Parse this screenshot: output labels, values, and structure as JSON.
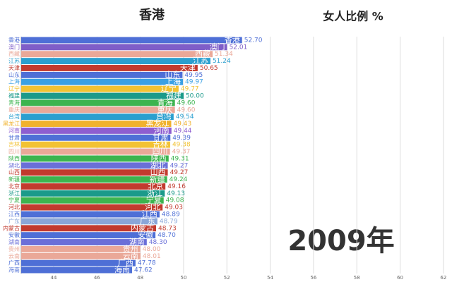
{
  "chart_data": {
    "type": "bar",
    "orientation": "horizontal",
    "title": "香港",
    "subtitle": "女人比例 %",
    "year_label": "2009年",
    "categories": [
      "香港",
      "澳门",
      "西藏",
      "江苏",
      "天津",
      "山东",
      "上海",
      "辽宁",
      "福建",
      "青海",
      "重庆",
      "台湾",
      "黑龙江",
      "河南",
      "甘肃",
      "吉林",
      "四川",
      "陕西",
      "湖北",
      "山西",
      "新疆",
      "北京",
      "浙江",
      "宁夏",
      "河北",
      "江西",
      "广东",
      "内蒙古",
      "安徽",
      "湖南",
      "贵州",
      "云南",
      "广西",
      "海南"
    ],
    "values": [
      52.7,
      52.01,
      51.34,
      51.24,
      50.65,
      49.95,
      49.97,
      49.77,
      50.0,
      49.6,
      49.6,
      49.54,
      49.43,
      49.44,
      49.39,
      49.38,
      49.37,
      49.31,
      49.27,
      49.27,
      49.24,
      49.16,
      49.13,
      49.08,
      49.03,
      48.89,
      48.79,
      48.73,
      48.7,
      48.3,
      48.0,
      48.01,
      47.78,
      47.62
    ],
    "value_labels": [
      "52.70",
      "52.01",
      "51.34",
      "51.24",
      "50.65",
      "49.95",
      "49.97",
      "49.77",
      "50.00",
      "49.60",
      "49.60",
      "49.54",
      "49.43",
      "49.44",
      "49.39",
      "49.38",
      "49.37",
      "49.31",
      "49.27",
      "49.27",
      "49.24",
      "49.16",
      "49.13",
      "49.08",
      "49.03",
      "48.89",
      "48.79",
      "48.73",
      "48.70",
      "48.30",
      "48.00",
      "48.01",
      "47.78",
      "47.62"
    ],
    "colors": [
      "#4e6fd6",
      "#7f5ec8",
      "#eaa898",
      "#2a9fcf",
      "#c23a2e",
      "#4e6fd6",
      "#3aa0e4",
      "#f2c233",
      "#1b9a8a",
      "#3cb44f",
      "#eaa898",
      "#2a9fcf",
      "#f0b22e",
      "#8e5ed0",
      "#4e6fd6",
      "#f2c233",
      "#eaa898",
      "#3cb44f",
      "#6a6fd8",
      "#c23a2e",
      "#3cb44f",
      "#c23a2e",
      "#1b9a8a",
      "#3cb44f",
      "#c23a2e",
      "#4e6fd6",
      "#8aa6d8",
      "#c23a2e",
      "#4e6fd6",
      "#6a6fd8",
      "#eaa898",
      "#eaa898",
      "#4e6fd6",
      "#4e6fd6"
    ],
    "xlim": [
      42.5,
      62.2
    ],
    "xticks": [
      44,
      46,
      48,
      50,
      52,
      54,
      56,
      58,
      60,
      62
    ],
    "grid": true
  }
}
